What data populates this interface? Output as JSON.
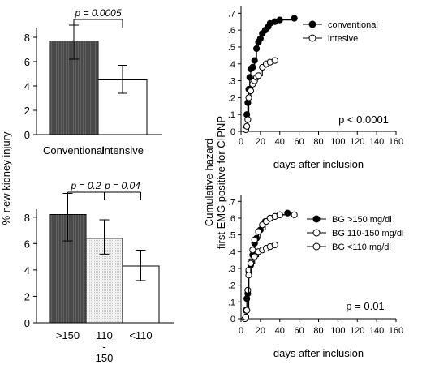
{
  "shared_ylabel": "% new kidney injury",
  "shared_right_ylabel": [
    "Cumulative hazard",
    "first EMG positive for CIPNP"
  ],
  "chart_data": [
    {
      "type": "bar",
      "categories": [
        "Conventional",
        "Intensive"
      ],
      "values": [
        7.7,
        4.5
      ],
      "errors": [
        [
          6.2,
          9.0
        ],
        [
          3.4,
          5.7
        ]
      ],
      "colors": [
        "#555555",
        "#ffffff"
      ],
      "ylim": [
        0,
        8
      ],
      "yticks": [
        "0",
        "2",
        "4",
        "6",
        "8"
      ],
      "annotations": [
        {
          "text": "p = 0.0005",
          "between": [
            0,
            1
          ]
        }
      ]
    },
    {
      "type": "bar",
      "categories": [
        ">150",
        "110 - 150",
        "<110"
      ],
      "category_lines": [
        [
          ">150"
        ],
        [
          "110",
          "-",
          "150"
        ],
        [
          "<110"
        ]
      ],
      "values": [
        8.2,
        6.4,
        4.3
      ],
      "errors": [
        [
          6.2,
          9.8
        ],
        [
          5.2,
          7.8
        ],
        [
          3.2,
          5.5
        ]
      ],
      "colors": [
        "#555555",
        "#e8e8e8",
        "#ffffff"
      ],
      "ylim": [
        0,
        8
      ],
      "yticks": [
        "0",
        "2",
        "4",
        "6",
        "8"
      ],
      "annotations": [
        {
          "text": "p = 0.2",
          "between": [
            0,
            1
          ]
        },
        {
          "text": "p = 0.04",
          "between": [
            1,
            2
          ]
        }
      ]
    },
    {
      "type": "line",
      "xlabel": "days after inclusion",
      "xlim": [
        0,
        160
      ],
      "ylim": [
        0,
        0.7
      ],
      "xticks": [
        "0",
        "20",
        "40",
        "60",
        "80",
        "100",
        "120",
        "140",
        "160"
      ],
      "yticks": [
        "0",
        ".1",
        ".2",
        ".3",
        ".4",
        ".5",
        ".6",
        ".7"
      ],
      "annotation": "p < 0.0001",
      "legend_position": "top-right",
      "series": [
        {
          "name": "conventional",
          "marker": "filled",
          "x": [
            5,
            6,
            7,
            8,
            9,
            10,
            12,
            14,
            16,
            18,
            20,
            22,
            25,
            28,
            30,
            35,
            40,
            55
          ],
          "y": [
            0.02,
            0.1,
            0.17,
            0.25,
            0.32,
            0.37,
            0.38,
            0.42,
            0.49,
            0.53,
            0.55,
            0.58,
            0.6,
            0.62,
            0.64,
            0.65,
            0.66,
            0.67
          ]
        },
        {
          "name": "intesive",
          "marker": "open",
          "x": [
            5,
            6,
            7,
            8,
            10,
            12,
            14,
            16,
            18,
            22,
            26,
            30,
            35
          ],
          "y": [
            0.01,
            0.03,
            0.07,
            0.2,
            0.24,
            0.28,
            0.3,
            0.32,
            0.33,
            0.38,
            0.4,
            0.41,
            0.42
          ]
        }
      ]
    },
    {
      "type": "line",
      "xlabel": "days after inclusion",
      "xlim": [
        0,
        160
      ],
      "ylim": [
        0,
        0.7
      ],
      "xticks": [
        "0",
        "20",
        "40",
        "60",
        "80",
        "100",
        "120",
        "140",
        "160"
      ],
      "yticks": [
        "0",
        ".1",
        ".2",
        ".3",
        ".4",
        ".5",
        ".6",
        ".7"
      ],
      "annotation": "p = 0.01",
      "legend_position": "top-right",
      "series": [
        {
          "name": "BG >150 mg/dl",
          "marker": "filled",
          "x": [
            5,
            6,
            7,
            8,
            10,
            12,
            14,
            16,
            20,
            25,
            30,
            35,
            40,
            48
          ],
          "y": [
            0.05,
            0.12,
            0.15,
            0.28,
            0.32,
            0.38,
            0.45,
            0.48,
            0.53,
            0.58,
            0.6,
            0.61,
            0.62,
            0.63
          ]
        },
        {
          "name": "BG 110-150 mg/dl",
          "marker": "open",
          "x": [
            6,
            7,
            8,
            10,
            12,
            14,
            18,
            22,
            26,
            30,
            35,
            40,
            55
          ],
          "y": [
            0.05,
            0.17,
            0.29,
            0.34,
            0.41,
            0.47,
            0.52,
            0.56,
            0.58,
            0.6,
            0.61,
            0.62,
            0.62
          ]
        },
        {
          "name": "BG <110 mg/dl",
          "marker": "open",
          "x": [
            4,
            5,
            6,
            8,
            10,
            14,
            18,
            22,
            26,
            30,
            35
          ],
          "y": [
            0.0,
            0.01,
            0.05,
            0.26,
            0.33,
            0.37,
            0.4,
            0.41,
            0.42,
            0.43,
            0.44
          ]
        }
      ]
    }
  ]
}
